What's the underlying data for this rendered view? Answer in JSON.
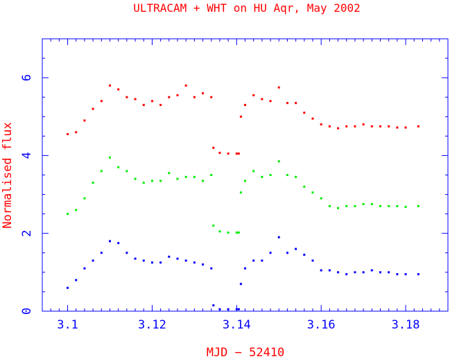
{
  "chart_data": {
    "type": "scatter",
    "title": "ULTRACAM + WHT on HU Aqr, May 2002",
    "xlabel": "MJD − 52410",
    "ylabel": "Normalised flux",
    "xlim": [
      3.094,
      3.19
    ],
    "ylim": [
      0,
      7
    ],
    "xticks": [
      {
        "value": 3.1,
        "label": "3.1"
      },
      {
        "value": 3.12,
        "label": "3.12"
      },
      {
        "value": 3.14,
        "label": "3.14"
      },
      {
        "value": 3.16,
        "label": "3.16"
      },
      {
        "value": 3.18,
        "label": "3.18"
      }
    ],
    "yticks": [
      {
        "value": 0,
        "label": "0"
      },
      {
        "value": 2,
        "label": "2"
      },
      {
        "value": 4,
        "label": "4"
      },
      {
        "value": 6,
        "label": "6"
      }
    ],
    "grid": false,
    "legend": "none",
    "colors": {
      "axes": "#0000ff",
      "title": "#ff0000",
      "labels": "#ff0000",
      "ticks": "#0000ff"
    },
    "series": [
      {
        "color": "#ff0000",
        "x": [
          3.1,
          3.102,
          3.104,
          3.106,
          3.108,
          3.11,
          3.112,
          3.114,
          3.116,
          3.118,
          3.12,
          3.122,
          3.124,
          3.126,
          3.128,
          3.13,
          3.132,
          3.134,
          3.1345,
          3.136,
          3.138,
          3.14,
          3.1405,
          3.141,
          3.142,
          3.144,
          3.146,
          3.148,
          3.15,
          3.152,
          3.154,
          3.156,
          3.158,
          3.16,
          3.162,
          3.164,
          3.166,
          3.168,
          3.17,
          3.172,
          3.174,
          3.176,
          3.178,
          3.18,
          3.183
        ],
        "y": [
          4.55,
          4.6,
          4.9,
          5.2,
          5.4,
          5.8,
          5.7,
          5.5,
          5.45,
          5.3,
          5.4,
          5.3,
          5.5,
          5.55,
          5.8,
          5.5,
          5.6,
          5.5,
          4.2,
          4.07,
          4.05,
          4.05,
          4.05,
          5.0,
          5.3,
          5.55,
          5.45,
          5.4,
          5.75,
          5.35,
          5.35,
          5.1,
          4.95,
          4.8,
          4.75,
          4.7,
          4.75,
          4.75,
          4.8,
          4.75,
          4.75,
          4.75,
          4.72,
          4.72,
          4.75
        ]
      },
      {
        "color": "#00ee00",
        "x": [
          3.1,
          3.102,
          3.104,
          3.106,
          3.108,
          3.11,
          3.112,
          3.114,
          3.116,
          3.118,
          3.12,
          3.122,
          3.124,
          3.126,
          3.128,
          3.13,
          3.132,
          3.134,
          3.1345,
          3.136,
          3.138,
          3.14,
          3.1405,
          3.141,
          3.142,
          3.144,
          3.146,
          3.148,
          3.15,
          3.152,
          3.154,
          3.156,
          3.158,
          3.16,
          3.162,
          3.164,
          3.166,
          3.168,
          3.17,
          3.172,
          3.174,
          3.176,
          3.178,
          3.18,
          3.183
        ],
        "y": [
          2.5,
          2.6,
          2.9,
          3.3,
          3.6,
          3.95,
          3.7,
          3.6,
          3.4,
          3.3,
          3.35,
          3.35,
          3.55,
          3.4,
          3.45,
          3.45,
          3.35,
          3.5,
          2.2,
          2.05,
          2.02,
          2.02,
          2.02,
          3.05,
          3.35,
          3.6,
          3.45,
          3.5,
          3.85,
          3.5,
          3.45,
          3.2,
          3.05,
          2.9,
          2.7,
          2.65,
          2.7,
          2.7,
          2.75,
          2.75,
          2.7,
          2.7,
          2.7,
          2.68,
          2.7
        ]
      },
      {
        "color": "#0000ff",
        "x": [
          3.1,
          3.102,
          3.104,
          3.106,
          3.108,
          3.11,
          3.112,
          3.114,
          3.116,
          3.118,
          3.12,
          3.122,
          3.124,
          3.126,
          3.128,
          3.13,
          3.132,
          3.134,
          3.1345,
          3.136,
          3.138,
          3.14,
          3.1405,
          3.141,
          3.142,
          3.144,
          3.146,
          3.148,
          3.15,
          3.152,
          3.154,
          3.156,
          3.158,
          3.16,
          3.162,
          3.164,
          3.166,
          3.168,
          3.17,
          3.172,
          3.174,
          3.176,
          3.178,
          3.18,
          3.183
        ],
        "y": [
          0.6,
          0.8,
          1.1,
          1.3,
          1.5,
          1.8,
          1.75,
          1.5,
          1.35,
          1.3,
          1.25,
          1.25,
          1.4,
          1.35,
          1.3,
          1.25,
          1.2,
          1.1,
          0.15,
          0.05,
          0.05,
          0.05,
          0.05,
          0.7,
          1.1,
          1.3,
          1.3,
          1.5,
          1.9,
          1.5,
          1.6,
          1.45,
          1.3,
          1.05,
          1.05,
          1.0,
          0.95,
          1.0,
          1.0,
          1.05,
          1.0,
          1.0,
          0.95,
          0.95,
          0.95
        ]
      }
    ]
  }
}
